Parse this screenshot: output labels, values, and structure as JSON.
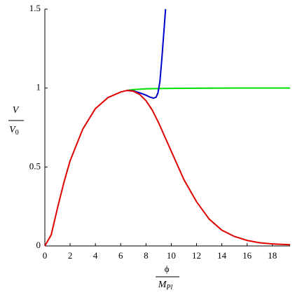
{
  "chart_data": {
    "type": "line",
    "x_label": {
      "numerator": "ϕ",
      "denominator": "M",
      "denominator_sub": "Pl"
    },
    "y_label": {
      "numerator": "V",
      "denominator": "V",
      "denominator_sub": "0"
    },
    "xlim": [
      0,
      19.4
    ],
    "ylim": [
      0,
      1.5
    ],
    "xticks": [
      0,
      2,
      4,
      6,
      8,
      10,
      12,
      14,
      16,
      18
    ],
    "yticks": [
      0,
      0.5,
      1,
      1.5
    ],
    "series": [
      {
        "color": "#00e000",
        "x": [
          6.5,
          7,
          8,
          9,
          10,
          12,
          15,
          19.4
        ],
        "values": [
          0.985,
          0.99,
          0.995,
          0.997,
          0.998,
          0.999,
          1.0,
          1.0
        ]
      },
      {
        "color": "#0000cc",
        "x": [
          6.5,
          7,
          7.5,
          8,
          8.3,
          8.6,
          8.8,
          8.95,
          9.1,
          9.25,
          9.4,
          9.55
        ],
        "values": [
          0.985,
          0.982,
          0.97,
          0.955,
          0.943,
          0.936,
          0.942,
          0.97,
          1.04,
          1.18,
          1.34,
          1.5
        ]
      },
      {
        "color": "#e00000",
        "x": [
          0,
          0.5,
          1,
          1.5,
          2,
          3,
          4,
          5,
          6,
          6.5,
          7,
          7.5,
          8,
          8.5,
          9,
          9.5,
          10,
          10.5,
          11,
          12,
          13,
          14,
          15,
          16,
          17,
          18,
          19.4
        ],
        "values": [
          0,
          0.07,
          0.24,
          0.4,
          0.54,
          0.74,
          0.87,
          0.94,
          0.975,
          0.985,
          0.98,
          0.96,
          0.92,
          0.86,
          0.78,
          0.69,
          0.6,
          0.51,
          0.42,
          0.28,
          0.17,
          0.1,
          0.06,
          0.035,
          0.02,
          0.013,
          0.008
        ]
      }
    ]
  }
}
